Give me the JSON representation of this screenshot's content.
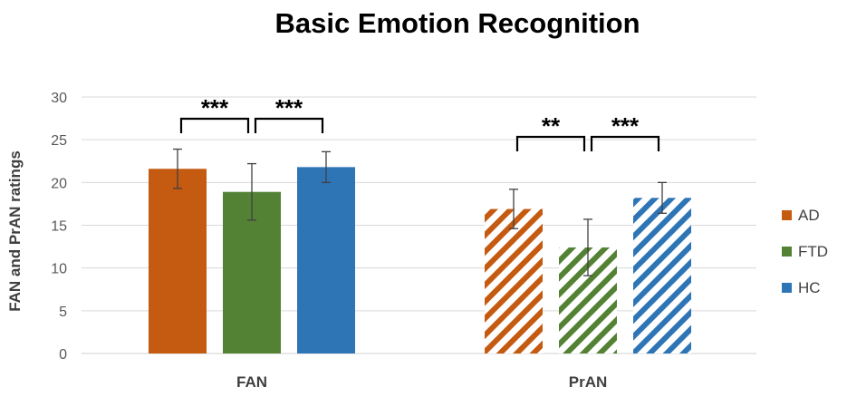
{
  "chart_data": {
    "type": "bar",
    "title": "Basic Emotion Recognition",
    "ylabel": "FAN and PrAN ratings",
    "xlabel": "",
    "ylim": [
      0,
      30
    ],
    "yticks": [
      0,
      5,
      10,
      15,
      20,
      25,
      30
    ],
    "grid": true,
    "legend_position": "right",
    "categories": [
      "FAN",
      "PrAN"
    ],
    "series": [
      {
        "name": "AD",
        "color": "#c55a11",
        "values": [
          21.6,
          16.9
        ],
        "errors": [
          2.3,
          2.3
        ]
      },
      {
        "name": "FTD",
        "color": "#548235",
        "values": [
          18.9,
          12.4
        ],
        "errors": [
          3.3,
          3.3
        ]
      },
      {
        "name": "HC",
        "color": "#2e75b6",
        "values": [
          21.8,
          18.2
        ],
        "errors": [
          1.8,
          1.8
        ]
      }
    ],
    "fill_patterns": [
      "solid",
      "diagonal-stripes"
    ],
    "significance": [
      {
        "category": "FAN",
        "between": [
          "AD",
          "FTD"
        ],
        "label": "***"
      },
      {
        "category": "FAN",
        "between": [
          "FTD",
          "HC"
        ],
        "label": "***"
      },
      {
        "category": "PrAN",
        "between": [
          "AD",
          "FTD"
        ],
        "label": "**"
      },
      {
        "category": "PrAN",
        "between": [
          "FTD",
          "HC"
        ],
        "label": "***"
      }
    ]
  }
}
